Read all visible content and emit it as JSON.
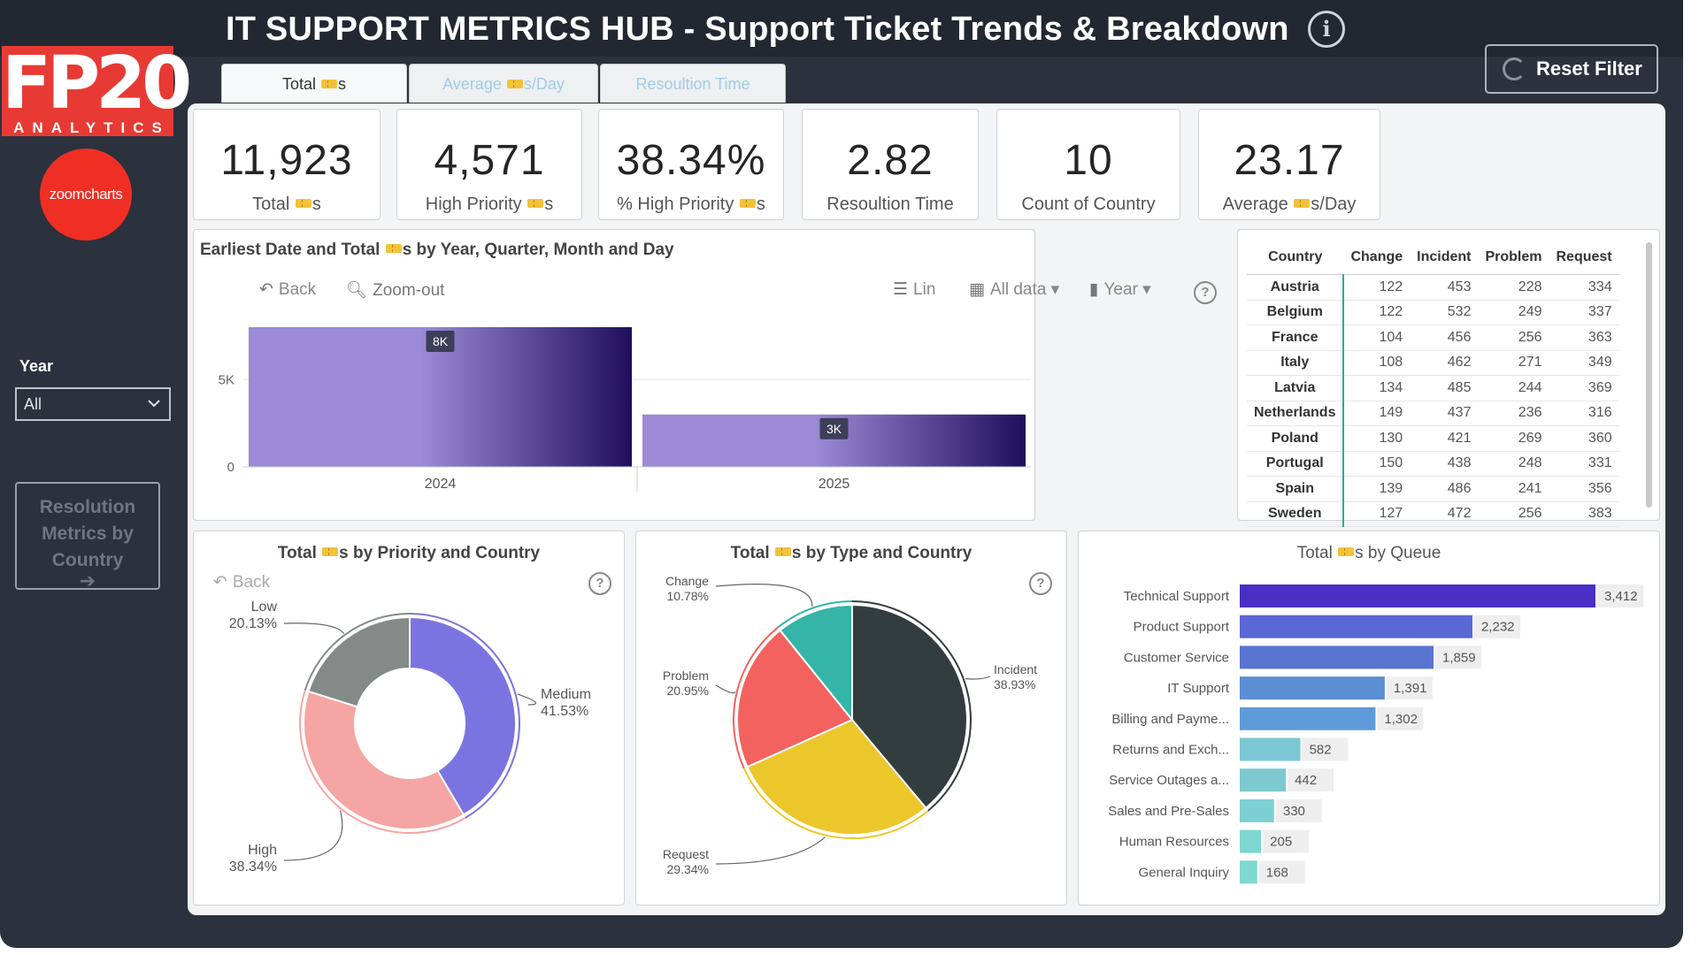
{
  "header": {
    "title": "IT SUPPORT METRICS HUB - Support Ticket Trends & Breakdown"
  },
  "branding": {
    "logo_main": "FP20",
    "logo_sub": "ANALYTICS",
    "zoomcharts": "zoomcharts",
    "brand_color": "#e83a34"
  },
  "sidebar": {
    "year_label": "Year",
    "year_value": "All",
    "nav_button_label": "Resolution Metrics by Country"
  },
  "reset_button": {
    "label": "Reset Filter"
  },
  "tabs": [
    {
      "pre": "Total ",
      "post": "s"
    },
    {
      "pre": "Average ",
      "post": "s/Day"
    },
    {
      "pre": "Resoultion Time",
      "post": ""
    }
  ],
  "kpis": [
    {
      "value": "11,923",
      "pre": "Total ",
      "post": "s",
      "ticket_icon": true
    },
    {
      "value": "4,571",
      "pre": "High Priority ",
      "post": "s",
      "ticket_icon": true
    },
    {
      "value": "38.34%",
      "pre": "% High Priority ",
      "post": "s",
      "ticket_icon": true
    },
    {
      "value": "2.82",
      "pre": "Resoultion Time",
      "post": "",
      "ticket_icon": false
    },
    {
      "value": "10",
      "pre": "Count of Country",
      "post": "",
      "ticket_icon": false
    },
    {
      "value": "23.17",
      "pre": "Average ",
      "post": "s/Day",
      "ticket_icon": true
    }
  ],
  "trend_card": {
    "title_pre": "Earliest Date and Total ",
    "title_post": "s by Year, Quarter, Month and Day",
    "toolbar": {
      "back": "Back",
      "zoom_out": "Zoom-out",
      "lin": "Lin",
      "all_data": "All data",
      "year": "Year"
    },
    "chart_data": {
      "type": "bar",
      "categories": [
        "2024",
        "2025"
      ],
      "values": [
        8000,
        3000
      ],
      "data_labels": [
        "8K",
        "3K"
      ],
      "y_ticks": [
        0,
        5000
      ],
      "y_tick_labels": [
        "0",
        "5K"
      ],
      "ylim": [
        0,
        8000
      ],
      "colors": [
        "#9b8ad6",
        "#1e0f5c"
      ]
    }
  },
  "country_table": {
    "columns": [
      "Country",
      "Change",
      "Incident",
      "Problem",
      "Request"
    ],
    "rows": [
      [
        "Austria",
        "122",
        "453",
        "228",
        "334"
      ],
      [
        "Belgium",
        "122",
        "532",
        "249",
        "337"
      ],
      [
        "France",
        "104",
        "456",
        "256",
        "363"
      ],
      [
        "Italy",
        "108",
        "462",
        "271",
        "349"
      ],
      [
        "Latvia",
        "134",
        "485",
        "244",
        "369"
      ],
      [
        "Netherlands",
        "149",
        "437",
        "236",
        "316"
      ],
      [
        "Poland",
        "130",
        "421",
        "269",
        "360"
      ],
      [
        "Portugal",
        "150",
        "438",
        "248",
        "331"
      ],
      [
        "Spain",
        "139",
        "486",
        "241",
        "356"
      ],
      [
        "Sweden",
        "127",
        "472",
        "256",
        "383"
      ]
    ]
  },
  "priority_card": {
    "title_pre": "Total ",
    "title_post": "s by Priority and Country",
    "back": "Back",
    "chart_data": {
      "type": "pie",
      "donut": true,
      "slices": [
        {
          "name": "Medium",
          "pct": 41.53,
          "label": "41.53%",
          "color": "#7b74e0"
        },
        {
          "name": "High",
          "pct": 38.34,
          "label": "38.34%",
          "color": "#f5a5a3"
        },
        {
          "name": "Low",
          "pct": 20.13,
          "label": "20.13%",
          "color": "#838a88"
        }
      ]
    }
  },
  "type_card": {
    "title_pre": "Total ",
    "title_post": "s by Type and Country",
    "chart_data": {
      "type": "pie",
      "donut": false,
      "slices": [
        {
          "name": "Incident",
          "pct": 38.93,
          "label": "38.93%",
          "color": "#343d3d"
        },
        {
          "name": "Request",
          "pct": 29.34,
          "label": "29.34%",
          "color": "#ecc72c"
        },
        {
          "name": "Problem",
          "pct": 20.95,
          "label": "20.95%",
          "color": "#f3625f"
        },
        {
          "name": "Change",
          "pct": 10.78,
          "label": "10.78%",
          "color": "#35b4a8"
        }
      ]
    }
  },
  "queue_card": {
    "title_pre": "Total ",
    "title_post": "s by Queue",
    "chart_data": {
      "type": "bar",
      "orientation": "horizontal",
      "categories": [
        "Technical Support",
        "Product Support",
        "Customer Service",
        "IT Support",
        "Billing and Payme...",
        "Returns and Exch...",
        "Service Outages a...",
        "Sales and Pre-Sales",
        "Human Resources",
        "General Inquiry"
      ],
      "values": [
        3412,
        2232,
        1859,
        1391,
        1302,
        582,
        442,
        330,
        205,
        168
      ],
      "value_labels": [
        "3,412",
        "2,232",
        "1,859",
        "1,391",
        "1,302",
        "582",
        "442",
        "330",
        "205",
        "168"
      ],
      "colors": [
        "#4a2fc4",
        "#5a67d4",
        "#5a74d2",
        "#5a8fd4",
        "#5f9bd8",
        "#7cc6d4",
        "#7ccad0",
        "#7ccfd3",
        "#7dd6d2",
        "#7ed8d0"
      ]
    }
  }
}
